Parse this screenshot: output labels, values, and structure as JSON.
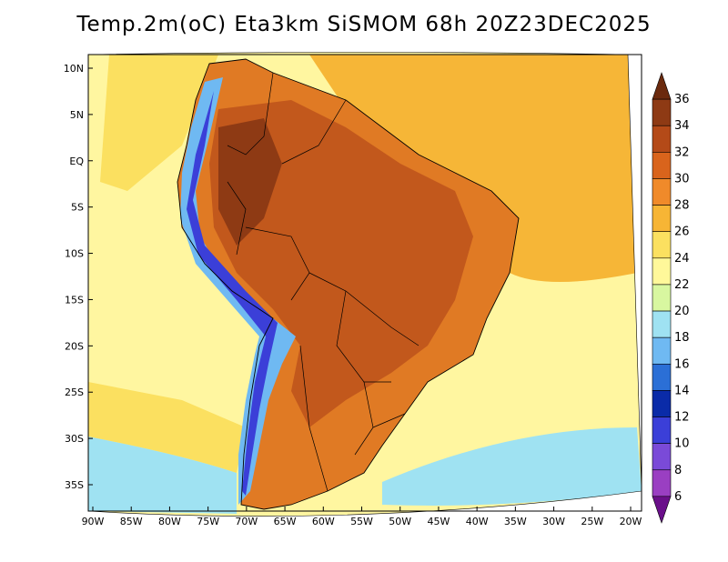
{
  "title": "Temp.2m(oC) Eta3km SiSMOM 68h 20Z23DEC2025",
  "longitude_labels": [
    "90W",
    "85W",
    "80W",
    "75W",
    "70W",
    "65W",
    "60W",
    "55W",
    "50W",
    "45W",
    "40W",
    "35W",
    "30W",
    "25W",
    "20W"
  ],
  "latitude_labels": [
    "10N",
    "5N",
    "EQ",
    "5S",
    "10S",
    "15S",
    "20S",
    "25S",
    "30S",
    "35S"
  ],
  "colorbar": {
    "labels": [
      "36",
      "34",
      "32",
      "30",
      "28",
      "26",
      "24",
      "22",
      "20",
      "18",
      "16",
      "14",
      "12",
      "10",
      "8",
      "6"
    ],
    "colors": [
      "#6b2a0e",
      "#8e3a14",
      "#b44a18",
      "#d9641c",
      "#f08a2a",
      "#f7b535",
      "#fbe060",
      "#fff89a",
      "#d8f7a0",
      "#9fe2f2",
      "#6fb9f2",
      "#2b6fd6",
      "#0a2ba8",
      "#3b3fd8",
      "#7a4ad8",
      "#9a3fc2",
      "#6a0f8a"
    ]
  },
  "map_colors": {
    "ocean_tropical": "#f6b637",
    "ocean_mid": "#fbe060",
    "ocean_cool": "#fff6a0",
    "ocean_cold": "#9fe2f2",
    "land_hot": "#c2581c",
    "land_warm": "#e07a24",
    "andes": "#6fb9f2"
  }
}
